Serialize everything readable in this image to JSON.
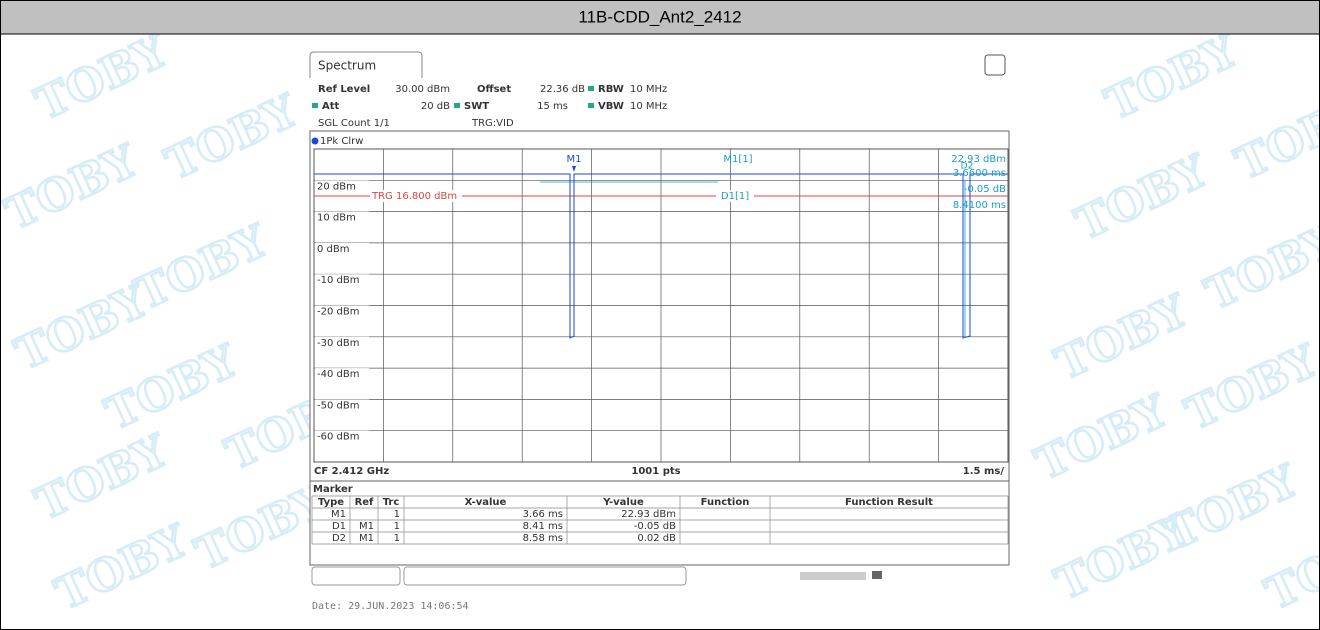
{
  "header": {
    "title": "11B-CDD_Ant2_2412"
  },
  "watermark": "TOBY",
  "spectrum": {
    "tab": "Spectrum",
    "ref_level_label": "Ref Level",
    "ref_level": "30.00 dBm",
    "offset_label": "Offset",
    "offset": "22.36 dB",
    "rbw_label": "RBW",
    "rbw": "10 MHz",
    "att_label": "Att",
    "att": "20 dB",
    "swt_label": "SWT",
    "swt": "15 ms",
    "vbw_label": "VBW",
    "vbw": "10 MHz",
    "sgl_count": "SGL Count 1/1",
    "trg": "TRG:VID",
    "trace_label": "1Pk Clrw"
  },
  "graph": {
    "y_labels": [
      "20 dBm",
      "10 dBm",
      "0 dBm",
      "-10 dBm",
      "-20 dBm",
      "-30 dBm",
      "-40 dBm",
      "-50 dBm",
      "-60 dBm"
    ],
    "trigger": "TRG 16.800 dBm",
    "m1": "M1",
    "m1_ref": "M1[1]",
    "d1_ref": "D1[1]",
    "d2": "D2",
    "readouts": [
      "22.93 dBm",
      "3.6600 ms",
      "-0.05 dB",
      "8.4100 ms"
    ],
    "cf": "CF 2.412 GHz",
    "pts": "1001 pts",
    "span": "1.5 ms/"
  },
  "marker_table": {
    "title": "Marker",
    "headers": [
      "Type",
      "Ref",
      "Trc",
      "X-value",
      "Y-value",
      "Function",
      "Function Result"
    ],
    "rows": [
      [
        "M1",
        "",
        "1",
        "3.66 ms",
        "22.93 dBm",
        "",
        ""
      ],
      [
        "D1",
        "M1",
        "1",
        "8.41 ms",
        "-0.05 dB",
        "",
        ""
      ],
      [
        "D2",
        "M1",
        "1",
        "8.58 ms",
        "0.02 dB",
        "",
        ""
      ]
    ]
  },
  "date": "Date: 29.JUN.2023 14:06:54"
}
